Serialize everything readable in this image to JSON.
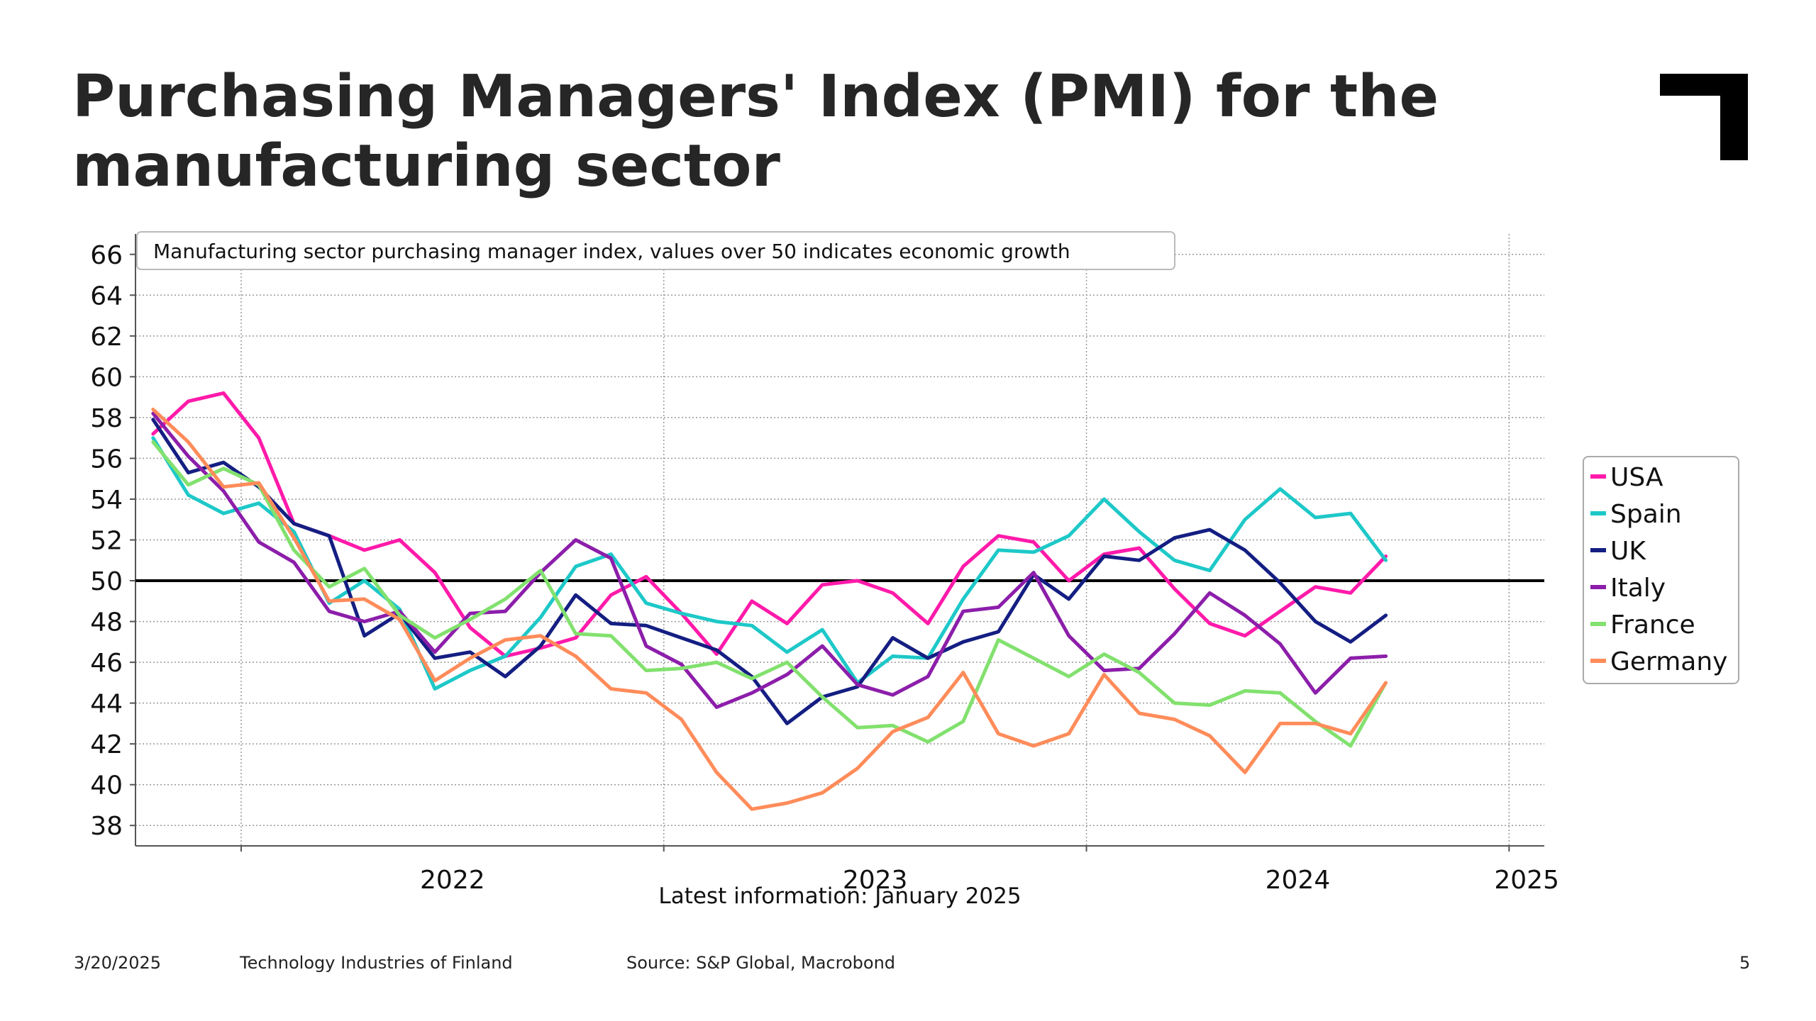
{
  "slide": {
    "title": "Purchasing Managers' Index (PMI) for the manufacturing sector",
    "footer": {
      "date": "3/20/2025",
      "organization": "Technology Industries of Finland",
      "source": "Source: S&P Global, Macrobond",
      "page_number": "5"
    },
    "logo_icon": "corner-bracket-logo"
  },
  "chart_data": {
    "type": "line",
    "title": "Manufacturing sector purchasing manager index, values over 50 indicates economic growth",
    "note": "Latest information: January 2025",
    "xlabel": "",
    "ylabel": "",
    "ylim": [
      37,
      67
    ],
    "y_ticks": [
      38,
      40,
      42,
      44,
      46,
      48,
      50,
      52,
      54,
      56,
      58,
      60,
      62,
      64,
      66
    ],
    "x_ticks": [
      "2022",
      "2023",
      "2024",
      "2025"
    ],
    "x_start": "2021-10",
    "x_end": "2025-01",
    "reference_line": 50,
    "grid": true,
    "legend_position": "right",
    "x": [
      "2021-10",
      "2021-11",
      "2021-12",
      "2022-01",
      "2022-02",
      "2022-03",
      "2022-04",
      "2022-05",
      "2022-06",
      "2022-07",
      "2022-08",
      "2022-09",
      "2022-10",
      "2022-11",
      "2022-12",
      "2023-01",
      "2023-02",
      "2023-03",
      "2023-04",
      "2023-05",
      "2023-06",
      "2023-07",
      "2023-08",
      "2023-09",
      "2023-10",
      "2023-11",
      "2023-12",
      "2024-01",
      "2024-02",
      "2024-03",
      "2024-04",
      "2024-05",
      "2024-06",
      "2024-07",
      "2024-08",
      "2024-09",
      "2024-10",
      "2024-11",
      "2024-12",
      "2025-01"
    ],
    "series": [
      {
        "name": "USA",
        "color": "#ff1aaa",
        "values": [
          57.2,
          58.8,
          59.2,
          57.0,
          52.8,
          52.2,
          51.5,
          52.0,
          50.4,
          47.7,
          46.3,
          46.7,
          47.2,
          49.3,
          50.2,
          48.4,
          46.4,
          49.0,
          47.9,
          49.8,
          50.0,
          49.4,
          47.9,
          50.7,
          52.2,
          51.9,
          50.0,
          51.3,
          51.6,
          49.6,
          47.9,
          47.3,
          48.5,
          49.7,
          49.4,
          51.2,
          null,
          null,
          null,
          null
        ]
      },
      {
        "name": "Spain",
        "color": "#1ec8c8",
        "values": [
          57.0,
          54.2,
          53.3,
          53.8,
          52.4,
          48.9,
          50.0,
          48.6,
          44.7,
          45.6,
          46.3,
          48.2,
          50.7,
          51.3,
          48.9,
          48.4,
          48.0,
          47.8,
          46.5,
          47.6,
          45.0,
          46.3,
          46.2,
          49.1,
          51.5,
          51.4,
          52.2,
          54.0,
          52.4,
          51.0,
          50.5,
          53.0,
          54.5,
          53.1,
          53.3,
          51.0,
          null,
          null,
          null,
          null
        ]
      },
      {
        "name": "UK",
        "color": "#141e82",
        "values": [
          57.9,
          55.3,
          55.8,
          54.6,
          52.8,
          52.2,
          47.3,
          48.4,
          46.2,
          46.5,
          45.3,
          46.8,
          49.3,
          47.9,
          47.8,
          47.2,
          46.6,
          45.3,
          43.0,
          44.3,
          44.8,
          47.2,
          46.2,
          47.0,
          47.5,
          50.3,
          49.1,
          51.2,
          51.0,
          52.1,
          52.5,
          51.5,
          49.9,
          48.0,
          47.0,
          48.3,
          null,
          null,
          null,
          null
        ]
      },
      {
        "name": "Italy",
        "color": "#8c1eaa",
        "values": [
          58.2,
          56.1,
          54.4,
          51.9,
          50.9,
          48.5,
          48.0,
          48.5,
          46.5,
          48.4,
          48.5,
          50.4,
          52.0,
          51.1,
          46.8,
          45.9,
          43.8,
          44.5,
          45.4,
          46.8,
          44.9,
          44.4,
          45.3,
          48.5,
          48.7,
          50.4,
          47.3,
          45.6,
          45.7,
          47.4,
          49.4,
          48.3,
          46.9,
          44.5,
          46.2,
          46.3,
          null,
          null,
          null,
          null
        ]
      },
      {
        "name": "France",
        "color": "#82e16e",
        "values": [
          56.8,
          54.7,
          55.5,
          54.7,
          51.5,
          49.7,
          50.6,
          48.3,
          47.2,
          48.1,
          49.1,
          50.5,
          47.4,
          47.3,
          45.6,
          45.7,
          46.0,
          45.2,
          46.0,
          44.3,
          42.8,
          42.9,
          42.1,
          43.1,
          47.1,
          46.2,
          45.3,
          46.4,
          45.5,
          44.0,
          43.9,
          44.6,
          44.5,
          43.1,
          41.9,
          45.0,
          null,
          null,
          null,
          null
        ]
      },
      {
        "name": "Germany",
        "color": "#ff8c5a",
        "values": [
          58.4,
          56.8,
          54.6,
          54.8,
          52.1,
          49.0,
          49.1,
          48.1,
          45.1,
          46.2,
          47.1,
          47.3,
          46.3,
          44.7,
          44.5,
          43.2,
          40.6,
          38.8,
          39.1,
          39.6,
          40.8,
          42.6,
          43.3,
          45.5,
          42.5,
          41.9,
          42.5,
          45.4,
          43.5,
          43.2,
          42.4,
          40.6,
          43.0,
          43.0,
          42.5,
          45.0,
          null,
          null,
          null,
          null
        ]
      }
    ]
  }
}
